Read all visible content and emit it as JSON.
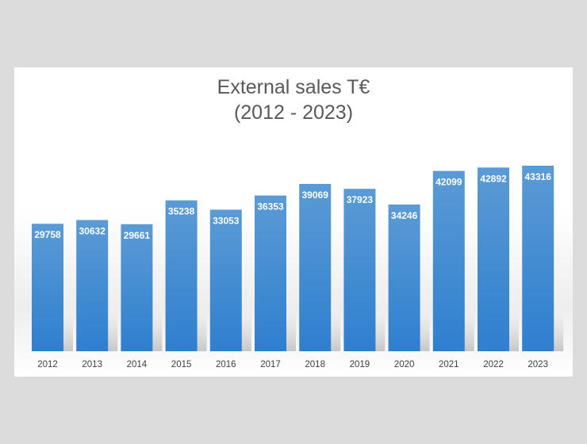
{
  "chart_data": {
    "type": "bar",
    "title_lines": [
      "External sales T€",
      "(2012 - 2023)"
    ],
    "categories": [
      "2012",
      "2013",
      "2014",
      "2015",
      "2016",
      "2017",
      "2018",
      "2019",
      "2020",
      "2021",
      "2022",
      "2023"
    ],
    "values": [
      29758,
      30632,
      29661,
      35238,
      33053,
      36353,
      39069,
      37923,
      34246,
      42099,
      42892,
      43316
    ],
    "ylim": [
      0,
      52000
    ],
    "grid": false,
    "legend": "none",
    "bar_color_top": "#5b9bd5",
    "bar_color_bottom": "#2f7fcf",
    "value_label_color": "#ffffff"
  }
}
